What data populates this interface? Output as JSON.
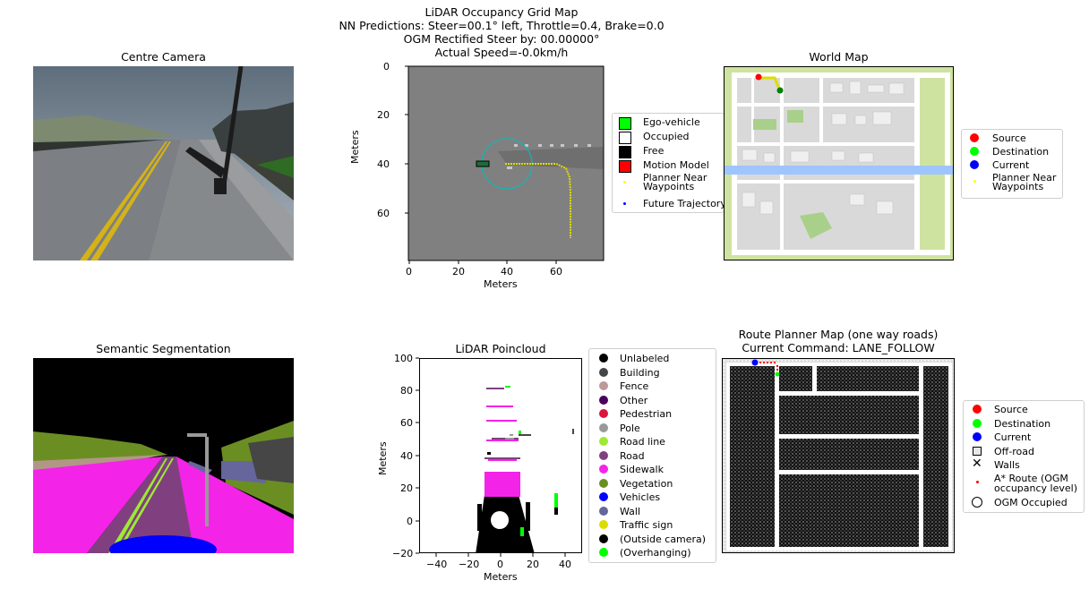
{
  "figure": {
    "suptitle_lines": [
      "LiDAR Occupancy Grid Map",
      "NN Predictions: Steer=00.1° left, Throttle=0.4, Brake=0.0",
      "OGM Rectified Steer by: 00.00000°",
      "Actual Speed=-0.0km/h"
    ]
  },
  "panels": {
    "centre_camera": {
      "title": "Centre Camera"
    },
    "world_map": {
      "title": "World Map"
    },
    "semantic_segmentation": {
      "title": "Semantic Segmentation"
    },
    "lidar_pointcloud": {
      "title": "LiDAR Poincloud"
    },
    "route_planner": {
      "title_line1": "Route Planner Map (one way roads)",
      "title_line2": "Current Command: LANE_FOLLOW"
    }
  },
  "ogm_axes": {
    "xlabel": "Meters",
    "ylabel": "Meters",
    "xticks": [
      "0",
      "20",
      "40",
      "60"
    ],
    "yticks": [
      "0",
      "20",
      "40",
      "60"
    ]
  },
  "pointcloud_axes": {
    "xlabel": "Meters",
    "ylabel": "Meters",
    "xticks": [
      "−40",
      "−20",
      "0",
      "20",
      "40"
    ],
    "yticks": [
      "100",
      "80",
      "60",
      "40",
      "20",
      "0",
      "−20"
    ]
  },
  "legends": {
    "ogm": [
      {
        "label": "Ego-vehicle",
        "marker": "square",
        "color": "#00ff00"
      },
      {
        "label": "Occupied",
        "marker": "square",
        "color": "#ffffff"
      },
      {
        "label": "Free",
        "marker": "square",
        "color": "#000000"
      },
      {
        "label": "Motion Model",
        "marker": "square",
        "color": "#ff0000"
      },
      {
        "label": "Planner Near\nWaypoints",
        "marker": "dot",
        "color": "#ffff00"
      },
      {
        "label": "Future Trajectory",
        "marker": "dot",
        "color": "#0000ff"
      }
    ],
    "world_map": [
      {
        "label": "Source",
        "color": "#ff0000"
      },
      {
        "label": "Destination",
        "color": "#00ff00"
      },
      {
        "label": "Current",
        "color": "#0000ff"
      },
      {
        "label": "Planner Near\nWaypoints",
        "color": "#ffff00",
        "small": true
      }
    ],
    "pointcloud": [
      {
        "label": "Unlabeled",
        "color": "#000000"
      },
      {
        "label": "Building",
        "color": "#464646"
      },
      {
        "label": "Fence",
        "color": "#be9999"
      },
      {
        "label": "Other",
        "color": "#48005a"
      },
      {
        "label": "Pedestrian",
        "color": "#dc143c"
      },
      {
        "label": "Pole",
        "color": "#999999"
      },
      {
        "label": "Road line",
        "color": "#9dea32"
      },
      {
        "label": "Road",
        "color": "#804080"
      },
      {
        "label": "Sidewalk",
        "color": "#f423e8"
      },
      {
        "label": "Vegetation",
        "color": "#6b8e23"
      },
      {
        "label": "Vehicles",
        "color": "#0000ff"
      },
      {
        "label": "Wall",
        "color": "#66669c"
      },
      {
        "label": "Traffic sign",
        "color": "#dcdc00"
      },
      {
        "label": "(Outside camera)",
        "color": "#000000"
      },
      {
        "label": "(Overhanging)",
        "color": "#00ff00"
      }
    ],
    "route_planner": [
      {
        "label": "Source",
        "marker": "dot",
        "color": "#ff0000"
      },
      {
        "label": "Destination",
        "marker": "dot",
        "color": "#00ff00"
      },
      {
        "label": "Current",
        "marker": "dot",
        "color": "#0000ff"
      },
      {
        "label": "Off-road",
        "marker": "square-outline",
        "color": "#000000"
      },
      {
        "label": "Walls",
        "marker": "x",
        "color": "#000000"
      },
      {
        "label": "A* Route (OGM\noccupancy level)",
        "marker": "small-dot",
        "color": "#ff0000"
      },
      {
        "label": "OGM Occupied",
        "marker": "circle-outline",
        "color": "#000000"
      }
    ]
  }
}
